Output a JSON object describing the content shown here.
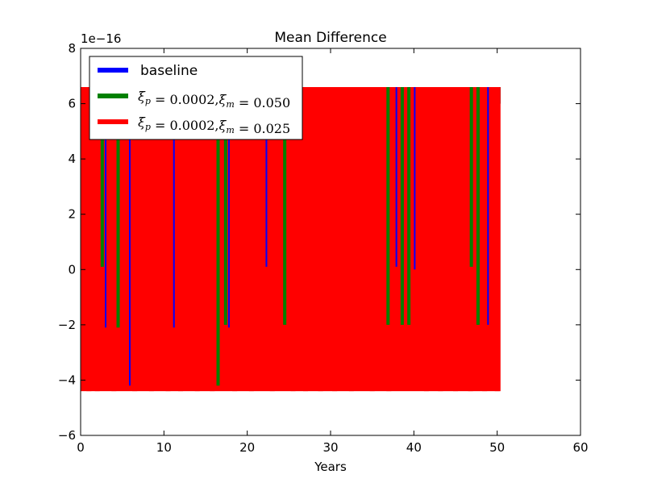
{
  "chart_data": {
    "type": "line",
    "title": "Mean Difference",
    "xlabel": "Years",
    "ylabel": "",
    "y_multiplier": "1e−16",
    "xlim": [
      0,
      60
    ],
    "ylim": [
      -6,
      8
    ],
    "x_ticks": [
      0,
      10,
      20,
      30,
      40,
      50,
      60
    ],
    "y_ticks": [
      -6,
      -4,
      -2,
      0,
      2,
      4,
      6,
      8
    ],
    "x_tick_labels": [
      "0",
      "10",
      "20",
      "30",
      "40",
      "50",
      "60"
    ],
    "y_tick_labels": [
      "−6",
      "−4",
      "−2",
      "0",
      "2",
      "4",
      "6",
      "8"
    ],
    "grid": false,
    "legend_position": "top-left",
    "x_range": [
      0,
      50.4
    ],
    "series": [
      {
        "name": "baseline",
        "label_text": "baseline",
        "color": "#0000ff",
        "base_value": 6.6,
        "low_value": -4.4,
        "dips": [
          {
            "x": 3.0,
            "y": -2.1
          },
          {
            "x": 5.9,
            "y": -4.2
          },
          {
            "x": 11.2,
            "y": -2.1
          },
          {
            "x": 17.8,
            "y": -2.1
          },
          {
            "x": 22.3,
            "y": 0.1
          },
          {
            "x": 37.9,
            "y": 0.1
          },
          {
            "x": 40.1,
            "y": 0.0
          },
          {
            "x": 48.9,
            "y": -2.0
          }
        ]
      },
      {
        "name": "xi_p=0.0002, xi_m=0.050",
        "label_parts": [
          "ξ",
          "p",
          " = 0.0002,",
          "ξ",
          "m",
          " = 0.050"
        ],
        "color": "#008000",
        "base_value": 6.6,
        "low_value": -4.4,
        "dips": [
          {
            "x": 2.6,
            "y": 0.1
          },
          {
            "x": 4.5,
            "y": -2.1
          },
          {
            "x": 16.5,
            "y": -4.2
          },
          {
            "x": 17.4,
            "y": -2.0
          },
          {
            "x": 24.5,
            "y": -2.0
          },
          {
            "x": 36.9,
            "y": -2.0
          },
          {
            "x": 38.6,
            "y": -2.0
          },
          {
            "x": 39.4,
            "y": -2.0
          },
          {
            "x": 46.9,
            "y": 0.1
          },
          {
            "x": 47.7,
            "y": -2.0
          }
        ]
      },
      {
        "name": "xi_p=0.0002, xi_m=0.025",
        "label_parts": [
          "ξ",
          "p",
          " = 0.0002,",
          "ξ",
          "m",
          " = 0.025"
        ],
        "color": "#ff0000",
        "base_value": 6.6,
        "low_value": -4.4,
        "dips": [
          {
            "x": 1.0,
            "y": -4.4
          },
          {
            "x": 2.0,
            "y": -4.4
          },
          {
            "x": 4.0,
            "y": -4.4
          },
          {
            "x": 6.5,
            "y": -4.4
          },
          {
            "x": 8.5,
            "y": -4.4
          },
          {
            "x": 10.5,
            "y": -4.4
          },
          {
            "x": 12.0,
            "y": -4.4
          },
          {
            "x": 14.0,
            "y": -4.4
          },
          {
            "x": 15.8,
            "y": -4.4
          },
          {
            "x": 18.5,
            "y": -4.4
          },
          {
            "x": 20.5,
            "y": -4.4
          },
          {
            "x": 23.0,
            "y": -4.4
          },
          {
            "x": 25.5,
            "y": -4.4
          },
          {
            "x": 27.0,
            "y": -4.4
          },
          {
            "x": 28.8,
            "y": -4.4
          },
          {
            "x": 30.5,
            "y": -4.4
          },
          {
            "x": 32.5,
            "y": -4.4
          },
          {
            "x": 33.8,
            "y": -4.2
          },
          {
            "x": 35.0,
            "y": -4.4
          },
          {
            "x": 37.0,
            "y": -4.4
          },
          {
            "x": 40.3,
            "y": -4.2
          },
          {
            "x": 41.5,
            "y": -4.4
          },
          {
            "x": 43.2,
            "y": -4.4
          },
          {
            "x": 45.0,
            "y": -4.4
          },
          {
            "x": 46.8,
            "y": -4.4
          },
          {
            "x": 48.5,
            "y": -4.4
          },
          {
            "x": 50.0,
            "y": -4.4
          }
        ]
      }
    ]
  }
}
